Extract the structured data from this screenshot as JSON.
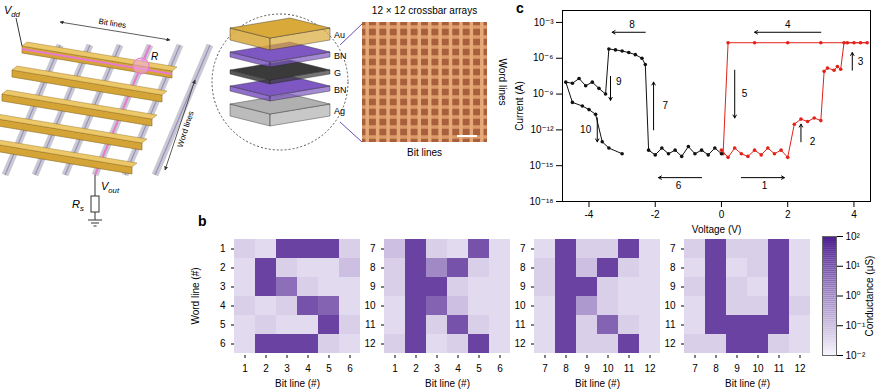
{
  "schematic": {
    "vdd": {
      "main": "V",
      "sub": "dd"
    },
    "bit_lines": "Bit lines",
    "word_lines": "Word lines",
    "cell": {
      "main": "R"
    },
    "vout": {
      "main": "V",
      "sub": "out"
    },
    "rs": {
      "main": "R",
      "sub": "s"
    }
  },
  "stack": {
    "layers": [
      "Au",
      "BN",
      "G",
      "BN",
      "Ag"
    ]
  },
  "photo": {
    "title": "12 × 12 crossbar arrays",
    "x_label": "Bit lines",
    "y_label": "Word lines",
    "rows": 12,
    "cols": 12
  },
  "panel_labels": {
    "b": "b",
    "c": "c"
  },
  "chart_data": [
    {
      "type": "line",
      "xlabel": "Voltage (V)",
      "ylabel": "Current (A)",
      "xlim": [
        -4.8,
        4.5
      ],
      "xticks": [
        -4,
        -2,
        0,
        2,
        4
      ],
      "ylim": [
        1e-18,
        0.01
      ],
      "yticks": [
        {
          "value": 0.001,
          "label": "10⁻³"
        },
        {
          "value": 1e-06,
          "label": "10⁻⁶"
        },
        {
          "value": 1e-09,
          "label": "10⁻⁹"
        },
        {
          "value": 1e-12,
          "label": "10⁻¹²"
        },
        {
          "value": 1e-15,
          "label": "10⁻¹⁵"
        },
        {
          "value": 1e-18,
          "label": "10⁻¹⁸"
        }
      ],
      "log": "y",
      "series": [
        {
          "color": "#e32119",
          "marker": "circle",
          "x": [
            0,
            0.2,
            0.4,
            0.6,
            0.8,
            1.0,
            1.2,
            1.4,
            1.6,
            1.8,
            2.0,
            2.2,
            2.4,
            2.6,
            2.8,
            3.0,
            3.1,
            3.2,
            3.4,
            3.5,
            3.6,
            3.7,
            3.8,
            4.0,
            4.2,
            4.4,
            3.0,
            2.0,
            1.0,
            0.2,
            0.05
          ],
          "values": [
            2e-14,
            5e-15,
            3e-14,
            1e-14,
            6e-15,
            2e-14,
            8e-15,
            3e-14,
            1e-14,
            2e-14,
            5e-15,
            3e-12,
            8e-12,
            5e-12,
            1e-11,
            6e-12,
            8e-08,
            1.5e-07,
            1e-07,
            2e-07,
            1.2e-07,
            2e-05,
            2e-05,
            2e-05,
            2e-05,
            2e-05,
            2e-05,
            2e-05,
            2e-05,
            2e-05,
            1e-14
          ]
        },
        {
          "color": "#111111",
          "marker": "circle",
          "x": [
            0,
            -0.2,
            -0.4,
            -0.6,
            -0.8,
            -1.0,
            -1.2,
            -1.4,
            -1.6,
            -1.8,
            -2.0,
            -2.2,
            -2.3,
            -2.4,
            -2.6,
            -2.8,
            -3.0,
            -3.2,
            -3.4,
            -3.5,
            -3.7,
            -3.9,
            -4.1,
            -4.3,
            -4.5,
            -4.7,
            -4.5,
            -4.2,
            -4.0,
            -3.8,
            -3.6,
            -3.4,
            -3.0
          ],
          "values": [
            1e-14,
            3e-14,
            8e-15,
            2e-14,
            1e-14,
            4e-14,
            6e-15,
            2e-14,
            1e-14,
            3e-14,
            8e-15,
            2e-14,
            3e-07,
            1e-06,
            2e-06,
            3e-06,
            4e-06,
            5e-06,
            6e-06,
            1e-09,
            3e-09,
            1e-08,
            5e-09,
            2e-08,
            8e-09,
            1e-08,
            2e-10,
            1e-10,
            5e-11,
            2e-11,
            1e-13,
            3e-14,
            1e-14
          ]
        }
      ],
      "annotations": [
        {
          "text": "1",
          "x": 1.3,
          "y": 2e-17,
          "from": [
            0.6,
            1e-16
          ],
          "to": [
            1.9,
            1e-16
          ]
        },
        {
          "text": "2",
          "x": 2.75,
          "y": 1e-13,
          "from": [
            2.4,
            1e-13
          ],
          "to": [
            2.4,
            3e-12
          ]
        },
        {
          "text": "3",
          "x": 4.2,
          "y": 5e-07,
          "from": [
            3.95,
            1e-07
          ],
          "to": [
            3.95,
            3e-06
          ]
        },
        {
          "text": "4",
          "x": 2,
          "y": 0.0006,
          "from": [
            3,
            0.00015
          ],
          "to": [
            1,
            0.00015
          ]
        },
        {
          "text": "5",
          "x": 0.7,
          "y": 1e-09,
          "from": [
            0.4,
            1e-07
          ],
          "to": [
            0.4,
            1e-11
          ]
        },
        {
          "text": "6",
          "x": -1.3,
          "y": 2e-17,
          "from": [
            -0.6,
            1e-16
          ],
          "to": [
            -1.9,
            1e-16
          ]
        },
        {
          "text": "7",
          "x": -1.7,
          "y": 1e-10,
          "from": [
            -2.05,
            1e-12
          ],
          "to": [
            -2.05,
            1e-08
          ]
        },
        {
          "text": "8",
          "x": -2.7,
          "y": 0.0006,
          "from": [
            -2.3,
            0.00015
          ],
          "to": [
            -3.3,
            0.00015
          ]
        },
        {
          "text": "9",
          "x": -3.1,
          "y": 1e-08,
          "from": [
            -3.35,
            3e-08
          ],
          "to": [
            -3.35,
            3e-10
          ]
        },
        {
          "text": "10",
          "x": -4.1,
          "y": 1e-12,
          "from": [
            -3.75,
            1e-11
          ],
          "to": [
            -3.75,
            1e-13
          ]
        }
      ]
    },
    {
      "type": "heatmap",
      "x_label": "Bit line (#)",
      "y_label": "Word line (#)",
      "x": [
        1,
        2,
        3,
        4,
        5,
        6
      ],
      "y": [
        1,
        2,
        3,
        4,
        5,
        6
      ],
      "cells": [
        [
          0.05,
          0.03,
          20,
          20,
          20,
          0.05
        ],
        [
          0.03,
          20,
          0.05,
          0.03,
          0.03,
          0.1
        ],
        [
          0.03,
          20,
          3,
          0.05,
          0.03,
          0.03
        ],
        [
          0.05,
          0.03,
          0.05,
          10,
          5,
          0.03
        ],
        [
          0.03,
          0.05,
          0.03,
          0.03,
          20,
          0.05
        ],
        [
          0.03,
          20,
          20,
          20,
          0.05,
          0.03
        ]
      ]
    },
    {
      "type": "heatmap",
      "x_label": "Bit line (#)",
      "x": [
        1,
        2,
        3,
        4,
        5,
        6
      ],
      "y": [
        7,
        8,
        9,
        10,
        11,
        12
      ],
      "cells": [
        [
          0.1,
          20,
          0.05,
          0.03,
          10,
          0.03
        ],
        [
          0.05,
          20,
          1,
          10,
          0.05,
          0.03
        ],
        [
          0.05,
          20,
          20,
          0.05,
          0.03,
          0.03
        ],
        [
          0.03,
          20,
          5,
          0.1,
          0.03,
          0.03
        ],
        [
          0.03,
          20,
          0.05,
          10,
          0.05,
          0.03
        ],
        [
          0.05,
          20,
          0.03,
          0.05,
          20,
          0.03
        ]
      ]
    },
    {
      "type": "heatmap",
      "x_label": "Bit line (#)",
      "x": [
        7,
        8,
        9,
        10,
        11,
        12
      ],
      "y": [
        7,
        8,
        9,
        10,
        11,
        12
      ],
      "cells": [
        [
          0.03,
          20,
          0.05,
          0.05,
          20,
          0.03
        ],
        [
          0.05,
          20,
          0.1,
          20,
          0.05,
          0.03
        ],
        [
          0.05,
          20,
          20,
          0.05,
          0.03,
          0.03
        ],
        [
          0.03,
          20,
          0.5,
          0.05,
          0.03,
          0.03
        ],
        [
          0.03,
          20,
          0.05,
          5,
          0.05,
          0.03
        ],
        [
          0.03,
          20,
          0.05,
          0.05,
          20,
          0.03
        ]
      ]
    },
    {
      "type": "heatmap",
      "x_label": "Bit line (#)",
      "x": [
        7,
        8,
        9,
        10,
        11,
        12
      ],
      "y": [
        7,
        8,
        9,
        10,
        11,
        12
      ],
      "cells": [
        [
          0.05,
          20,
          0.05,
          0.05,
          20,
          0.03
        ],
        [
          0.03,
          20,
          0.03,
          0.05,
          20,
          0.03
        ],
        [
          0.05,
          20,
          0.05,
          0.03,
          20,
          0.03
        ],
        [
          0.03,
          20,
          0.05,
          0.05,
          20,
          0.05
        ],
        [
          0.03,
          20,
          20,
          20,
          20,
          0.03
        ],
        [
          0.05,
          0.05,
          20,
          20,
          0.05,
          0.03
        ]
      ]
    },
    {
      "type": "colorbar",
      "label": "Conductance (μS)",
      "log": true,
      "range": [
        0.01,
        100
      ],
      "ticks": [
        {
          "value": 100,
          "label": "10²"
        },
        {
          "value": 10,
          "label": "10¹"
        },
        {
          "value": 1,
          "label": "10⁰"
        },
        {
          "value": 0.1,
          "label": "10⁻¹"
        },
        {
          "value": 0.01,
          "label": "10⁻²"
        }
      ],
      "colors": [
        "#f7f5fc",
        "#4b1c8f"
      ]
    }
  ]
}
